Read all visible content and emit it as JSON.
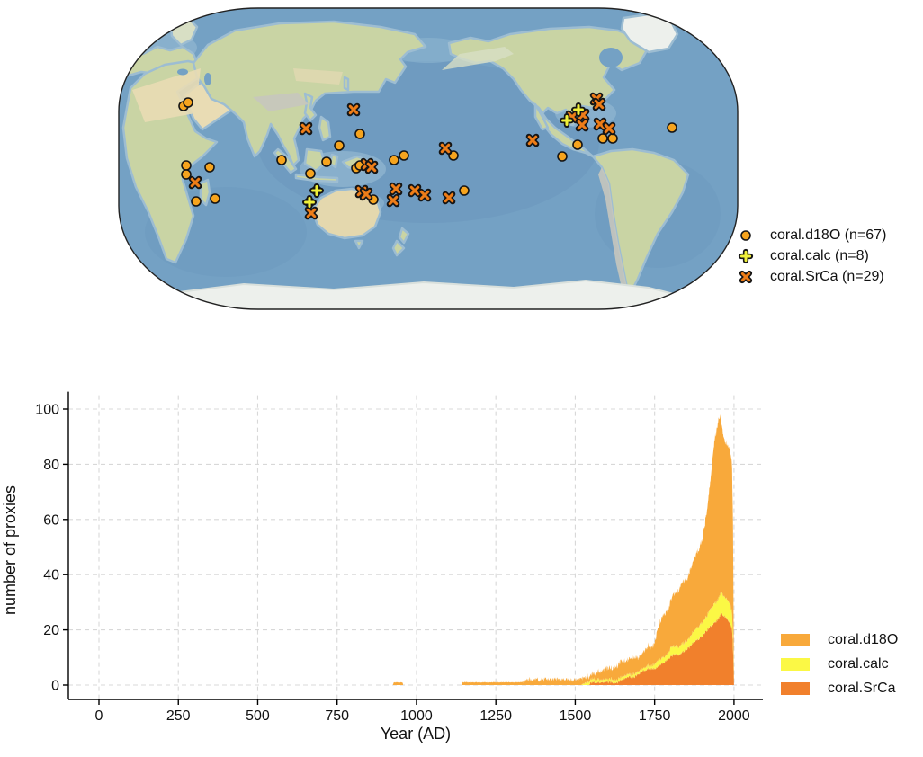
{
  "map_legend": {
    "items": [
      {
        "id": "d18O",
        "marker": "circle",
        "label": "coral.d18O (n=67)"
      },
      {
        "id": "calc",
        "marker": "plus",
        "label": "coral.calc (n=8)"
      },
      {
        "id": "SrCa",
        "marker": "x",
        "label": "coral.SrCa (n=29)"
      }
    ]
  },
  "chart_legend": {
    "items": [
      {
        "id": "d18O",
        "label": "coral.d18O",
        "color": "#F8A93B"
      },
      {
        "id": "calc",
        "label": "coral.calc",
        "color": "#FBF845"
      },
      {
        "id": "SrCa",
        "label": "coral.SrCa",
        "color": "#F1802C"
      }
    ]
  },
  "chart_data": {
    "type": "area",
    "stacked": true,
    "stack_order_bottom_to_top": [
      "coral.SrCa",
      "coral.calc",
      "coral.d18O"
    ],
    "title": "",
    "xlabel": "Year (AD)",
    "ylabel": "number of proxies",
    "xlim": [
      -96,
      2092
    ],
    "ylim": [
      -5,
      105
    ],
    "x_ticks": [
      0,
      250,
      500,
      750,
      1000,
      1250,
      1500,
      1750,
      2000
    ],
    "y_ticks": [
      0,
      20,
      40,
      60,
      80,
      100
    ],
    "grid": "dashed",
    "legend_position": "right-bottom",
    "series": [
      {
        "name": "coral.d18O",
        "color": "#F8A93B",
        "points": [
          [
            900,
            0
          ],
          [
            926,
            0
          ],
          [
            928,
            1
          ],
          [
            956,
            1
          ],
          [
            958,
            0
          ],
          [
            1142,
            0
          ],
          [
            1146,
            1
          ],
          [
            1330,
            1
          ],
          [
            1345,
            2
          ],
          [
            1520,
            2
          ],
          [
            1560,
            2
          ],
          [
            1580,
            3
          ],
          [
            1600,
            4
          ],
          [
            1620,
            4
          ],
          [
            1645,
            6
          ],
          [
            1662,
            5
          ],
          [
            1680,
            6
          ],
          [
            1700,
            5
          ],
          [
            1715,
            6
          ],
          [
            1730,
            7
          ],
          [
            1745,
            7
          ],
          [
            1752,
            8
          ],
          [
            1758,
            11
          ],
          [
            1764,
            13
          ],
          [
            1775,
            15
          ],
          [
            1790,
            16
          ],
          [
            1800,
            17
          ],
          [
            1812,
            19
          ],
          [
            1825,
            20
          ],
          [
            1838,
            22
          ],
          [
            1850,
            22
          ],
          [
            1862,
            24
          ],
          [
            1875,
            26
          ],
          [
            1888,
            28
          ],
          [
            1900,
            30
          ],
          [
            1908,
            34
          ],
          [
            1916,
            39
          ],
          [
            1924,
            45
          ],
          [
            1932,
            53
          ],
          [
            1940,
            60
          ],
          [
            1946,
            63
          ],
          [
            1952,
            65
          ],
          [
            1958,
            64
          ],
          [
            1964,
            59
          ],
          [
            1970,
            57
          ],
          [
            1978,
            56
          ],
          [
            1985,
            56
          ],
          [
            1990,
            55
          ],
          [
            1994,
            53
          ],
          [
            1997,
            41
          ],
          [
            1999,
            14
          ],
          [
            2000,
            0
          ]
        ]
      },
      {
        "name": "coral.calc",
        "color": "#FBF845",
        "points": [
          [
            1520,
            0
          ],
          [
            1535,
            1
          ],
          [
            1690,
            1
          ],
          [
            1705,
            1
          ],
          [
            1740,
            1
          ],
          [
            1755,
            2
          ],
          [
            1790,
            2
          ],
          [
            1800,
            3
          ],
          [
            1855,
            3
          ],
          [
            1872,
            4
          ],
          [
            1898,
            5
          ],
          [
            1912,
            5
          ],
          [
            1922,
            6
          ],
          [
            1938,
            7
          ],
          [
            1952,
            7
          ],
          [
            1958,
            8
          ],
          [
            1968,
            7
          ],
          [
            1988,
            7
          ],
          [
            1993,
            6
          ],
          [
            1997,
            4
          ],
          [
            1999,
            1
          ],
          [
            2000,
            0
          ]
        ]
      },
      {
        "name": "coral.SrCa",
        "color": "#F1802C",
        "points": [
          [
            1544,
            0
          ],
          [
            1548,
            1
          ],
          [
            1635,
            1
          ],
          [
            1648,
            2
          ],
          [
            1668,
            3
          ],
          [
            1688,
            3
          ],
          [
            1698,
            4
          ],
          [
            1712,
            5
          ],
          [
            1730,
            6
          ],
          [
            1752,
            6
          ],
          [
            1762,
            7
          ],
          [
            1778,
            8
          ],
          [
            1788,
            9
          ],
          [
            1798,
            10
          ],
          [
            1812,
            11
          ],
          [
            1828,
            11
          ],
          [
            1838,
            12
          ],
          [
            1852,
            13
          ],
          [
            1862,
            14
          ],
          [
            1876,
            16
          ],
          [
            1892,
            17
          ],
          [
            1902,
            18
          ],
          [
            1908,
            19
          ],
          [
            1916,
            20
          ],
          [
            1924,
            21
          ],
          [
            1933,
            22
          ],
          [
            1943,
            23
          ],
          [
            1950,
            24
          ],
          [
            1956,
            25
          ],
          [
            1962,
            26
          ],
          [
            1970,
            25
          ],
          [
            1978,
            24
          ],
          [
            1984,
            23
          ],
          [
            1989,
            22
          ],
          [
            1993,
            21
          ],
          [
            1996,
            17
          ],
          [
            1998,
            9
          ],
          [
            2000,
            0
          ]
        ]
      }
    ]
  },
  "map_data": {
    "projection": "Robinson, Pacific-centered",
    "marker_colors": {
      "d18O_fill": "#F6A41E",
      "calc_fill": "#F0F03A",
      "SrCa_fill": "#EE7D18",
      "outline": "#151515"
    },
    "markers": {
      "d18O": [
        [
          73,
          110
        ],
        [
          78,
          106
        ],
        [
          76,
          176
        ],
        [
          76,
          186
        ],
        [
          102,
          178
        ],
        [
          87,
          216
        ],
        [
          108,
          213
        ],
        [
          182,
          170
        ],
        [
          232,
          172
        ],
        [
          214,
          185
        ],
        [
          246,
          154
        ],
        [
          265,
          179
        ],
        [
          269,
          176
        ],
        [
          269,
          141
        ],
        [
          307,
          170
        ],
        [
          318,
          165
        ],
        [
          284,
          214
        ],
        [
          373,
          165
        ],
        [
          385,
          204
        ],
        [
          494,
          166
        ],
        [
          511,
          153
        ],
        [
          539,
          146
        ],
        [
          550,
          146
        ],
        [
          616,
          134
        ],
        [
          221,
          204
        ],
        [
          213,
          217
        ]
      ],
      "calc": [
        [
          512,
          114
        ],
        [
          499,
          126
        ],
        [
          221,
          204
        ],
        [
          213,
          217
        ]
      ],
      "SrCa": [
        [
          262,
          114
        ],
        [
          209,
          135
        ],
        [
          364,
          157
        ],
        [
          461,
          148
        ],
        [
          86,
          195
        ],
        [
          215,
          229
        ],
        [
          271,
          205
        ],
        [
          276,
          208
        ],
        [
          309,
          202
        ],
        [
          306,
          215
        ],
        [
          330,
          204
        ],
        [
          341,
          209
        ],
        [
          368,
          212
        ],
        [
          277,
          175
        ],
        [
          282,
          178
        ],
        [
          532,
          102
        ],
        [
          535,
          108
        ],
        [
          517,
          120
        ],
        [
          505,
          122
        ],
        [
          516,
          131
        ],
        [
          536,
          130
        ],
        [
          546,
          135
        ]
      ]
    }
  }
}
